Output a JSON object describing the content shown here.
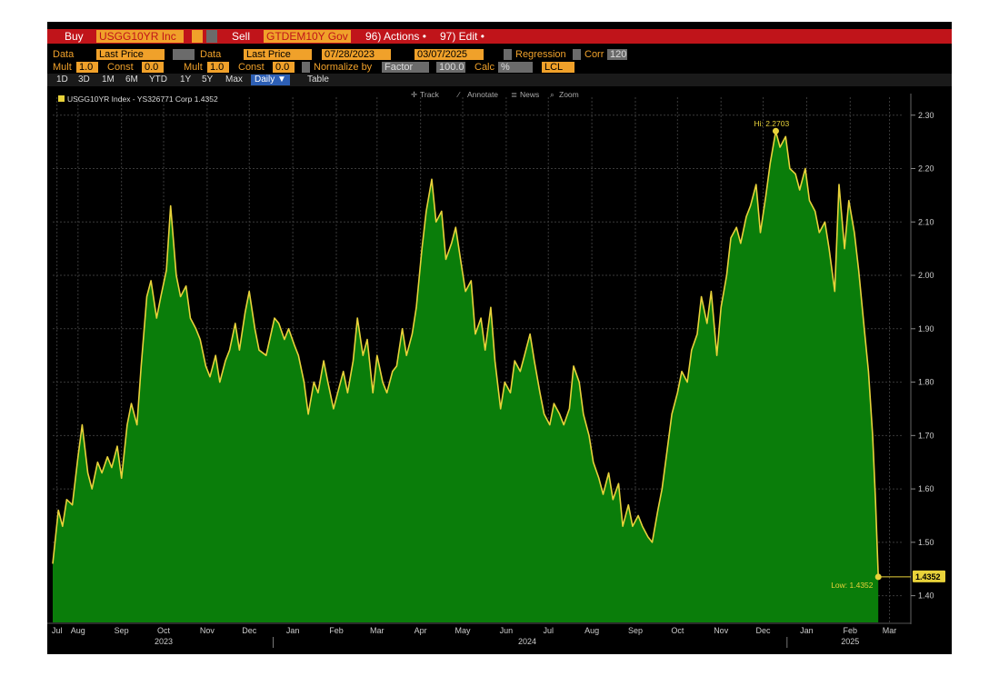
{
  "toolbar": {
    "buy_label": "Buy",
    "buy_security": "USGG10YR Inc",
    "sell_label": "Sell",
    "sell_security": "GTDEM10Y Gov",
    "actions_label": "96) Actions •",
    "edit_label": "97) Edit •"
  },
  "settings": {
    "data1_label": "Data",
    "data1_value": "Last Price",
    "data2_label": "Data",
    "data2_value": "Last Price",
    "start_date": "07/28/2023",
    "end_date": "03/07/2025",
    "regression_label": "Regression",
    "corr_label": "Corr",
    "corr_value": "120",
    "mult1_label": "Mult",
    "mult1_value": "1.0",
    "const1_label": "Const",
    "const1_value": "0.0",
    "mult2_label": "Mult",
    "mult2_value": "1.0",
    "const2_label": "Const",
    "const2_value": "0.0",
    "normalize_label": "Normalize by",
    "normalize_value": "Factor",
    "normalize_num": "100.0",
    "calc_label": "Calc",
    "calc_value": "%",
    "lcl_value": "LCL"
  },
  "timeframes": [
    "1D",
    "3D",
    "1M",
    "6M",
    "YTD",
    "1Y",
    "5Y",
    "Max"
  ],
  "frequency": "Daily ▼",
  "table_label": "Table",
  "chart_tools": [
    "Track",
    "Annotate",
    "News",
    "Zoom"
  ],
  "colors": {
    "area": "#0a7d0a",
    "line": "#e8d23a",
    "bg": "#000000",
    "accent": "#f0a12a",
    "bar": "#c0141a"
  },
  "chart_data": {
    "type": "area",
    "legend": "USGG10YR Index - YS326771 Corp 1.4352",
    "last_value_label": "1.4352",
    "hi_label": "Hi: 2.2703",
    "low_label": "Low: 1.4352",
    "hi_value": 2.2703,
    "low_value": 1.4352,
    "ylim": [
      1.35,
      2.32
    ],
    "yticks": [
      1.4,
      1.5,
      1.6,
      1.7,
      1.8,
      1.9,
      2.0,
      2.1,
      2.2,
      2.3
    ],
    "ytick_labels": [
      "1.40",
      "1.50",
      "1.60",
      "1.70",
      "1.80",
      "1.90",
      "2.00",
      "2.10",
      "2.20",
      "2.30"
    ],
    "x_start": "2023-07-28",
    "x_end": "2025-03-25",
    "month_labels": [
      {
        "label": "Jul",
        "date": "2023-07-31"
      },
      {
        "label": "Aug",
        "date": "2023-08-15"
      },
      {
        "label": "Sep",
        "date": "2023-09-15"
      },
      {
        "label": "Oct",
        "date": "2023-10-15"
      },
      {
        "label": "Nov",
        "date": "2023-11-15"
      },
      {
        "label": "Dec",
        "date": "2023-12-15"
      },
      {
        "label": "Jan",
        "date": "2024-01-15"
      },
      {
        "label": "Feb",
        "date": "2024-02-15"
      },
      {
        "label": "Mar",
        "date": "2024-03-15"
      },
      {
        "label": "Apr",
        "date": "2024-04-15"
      },
      {
        "label": "May",
        "date": "2024-05-15"
      },
      {
        "label": "Jun",
        "date": "2024-06-15"
      },
      {
        "label": "Jul",
        "date": "2024-07-15"
      },
      {
        "label": "Aug",
        "date": "2024-08-15"
      },
      {
        "label": "Sep",
        "date": "2024-09-15"
      },
      {
        "label": "Oct",
        "date": "2024-10-15"
      },
      {
        "label": "Nov",
        "date": "2024-11-15"
      },
      {
        "label": "Dec",
        "date": "2024-12-15"
      },
      {
        "label": "Jan",
        "date": "2025-01-15"
      },
      {
        "label": "Feb",
        "date": "2025-02-15"
      },
      {
        "label": "Mar",
        "date": "2025-03-15"
      }
    ],
    "year_labels": [
      {
        "label": "2023",
        "date": "2023-10-15"
      },
      {
        "label": "2024",
        "date": "2024-06-30"
      },
      {
        "label": "2025",
        "date": "2025-02-15"
      }
    ],
    "points": [
      [
        "2023-07-28",
        1.46
      ],
      [
        "2023-08-01",
        1.56
      ],
      [
        "2023-08-04",
        1.53
      ],
      [
        "2023-08-07",
        1.58
      ],
      [
        "2023-08-11",
        1.57
      ],
      [
        "2023-08-15",
        1.66
      ],
      [
        "2023-08-18",
        1.72
      ],
      [
        "2023-08-22",
        1.63
      ],
      [
        "2023-08-25",
        1.6
      ],
      [
        "2023-08-29",
        1.65
      ],
      [
        "2023-09-01",
        1.63
      ],
      [
        "2023-09-05",
        1.66
      ],
      [
        "2023-09-08",
        1.64
      ],
      [
        "2023-09-12",
        1.68
      ],
      [
        "2023-09-15",
        1.62
      ],
      [
        "2023-09-19",
        1.72
      ],
      [
        "2023-09-22",
        1.76
      ],
      [
        "2023-09-26",
        1.72
      ],
      [
        "2023-09-29",
        1.83
      ],
      [
        "2023-10-03",
        1.96
      ],
      [
        "2023-10-06",
        1.99
      ],
      [
        "2023-10-10",
        1.92
      ],
      [
        "2023-10-13",
        1.96
      ],
      [
        "2023-10-17",
        2.01
      ],
      [
        "2023-10-20",
        2.13
      ],
      [
        "2023-10-24",
        2.0
      ],
      [
        "2023-10-27",
        1.96
      ],
      [
        "2023-10-31",
        1.98
      ],
      [
        "2023-11-03",
        1.92
      ],
      [
        "2023-11-07",
        1.9
      ],
      [
        "2023-11-10",
        1.88
      ],
      [
        "2023-11-14",
        1.83
      ],
      [
        "2023-11-17",
        1.81
      ],
      [
        "2023-11-21",
        1.85
      ],
      [
        "2023-11-24",
        1.8
      ],
      [
        "2023-11-28",
        1.84
      ],
      [
        "2023-12-01",
        1.86
      ],
      [
        "2023-12-05",
        1.91
      ],
      [
        "2023-12-08",
        1.86
      ],
      [
        "2023-12-12",
        1.93
      ],
      [
        "2023-12-15",
        1.97
      ],
      [
        "2023-12-19",
        1.9
      ],
      [
        "2023-12-22",
        1.86
      ],
      [
        "2023-12-27",
        1.85
      ],
      [
        "2024-01-02",
        1.92
      ],
      [
        "2024-01-05",
        1.91
      ],
      [
        "2024-01-09",
        1.88
      ],
      [
        "2024-01-12",
        1.9
      ],
      [
        "2024-01-16",
        1.87
      ],
      [
        "2024-01-19",
        1.85
      ],
      [
        "2024-01-23",
        1.8
      ],
      [
        "2024-01-26",
        1.74
      ],
      [
        "2024-01-30",
        1.8
      ],
      [
        "2024-02-02",
        1.78
      ],
      [
        "2024-02-06",
        1.84
      ],
      [
        "2024-02-09",
        1.8
      ],
      [
        "2024-02-13",
        1.75
      ],
      [
        "2024-02-16",
        1.78
      ],
      [
        "2024-02-20",
        1.82
      ],
      [
        "2024-02-23",
        1.78
      ],
      [
        "2024-02-27",
        1.84
      ],
      [
        "2024-03-01",
        1.92
      ],
      [
        "2024-03-05",
        1.85
      ],
      [
        "2024-03-08",
        1.88
      ],
      [
        "2024-03-12",
        1.78
      ],
      [
        "2024-03-15",
        1.85
      ],
      [
        "2024-03-19",
        1.8
      ],
      [
        "2024-03-22",
        1.78
      ],
      [
        "2024-03-26",
        1.82
      ],
      [
        "2024-03-29",
        1.83
      ],
      [
        "2024-04-02",
        1.9
      ],
      [
        "2024-04-05",
        1.85
      ],
      [
        "2024-04-09",
        1.89
      ],
      [
        "2024-04-12",
        1.94
      ],
      [
        "2024-04-16",
        2.05
      ],
      [
        "2024-04-19",
        2.12
      ],
      [
        "2024-04-23",
        2.18
      ],
      [
        "2024-04-26",
        2.1
      ],
      [
        "2024-04-30",
        2.12
      ],
      [
        "2024-05-03",
        2.03
      ],
      [
        "2024-05-07",
        2.06
      ],
      [
        "2024-05-10",
        2.09
      ],
      [
        "2024-05-14",
        2.02
      ],
      [
        "2024-05-17",
        1.97
      ],
      [
        "2024-05-21",
        1.99
      ],
      [
        "2024-05-24",
        1.89
      ],
      [
        "2024-05-28",
        1.92
      ],
      [
        "2024-05-31",
        1.86
      ],
      [
        "2024-06-04",
        1.94
      ],
      [
        "2024-06-07",
        1.84
      ],
      [
        "2024-06-11",
        1.75
      ],
      [
        "2024-06-14",
        1.8
      ],
      [
        "2024-06-18",
        1.78
      ],
      [
        "2024-06-21",
        1.84
      ],
      [
        "2024-06-25",
        1.82
      ],
      [
        "2024-06-28",
        1.85
      ],
      [
        "2024-07-02",
        1.89
      ],
      [
        "2024-07-05",
        1.84
      ],
      [
        "2024-07-09",
        1.78
      ],
      [
        "2024-07-12",
        1.74
      ],
      [
        "2024-07-16",
        1.72
      ],
      [
        "2024-07-19",
        1.76
      ],
      [
        "2024-07-23",
        1.74
      ],
      [
        "2024-07-26",
        1.72
      ],
      [
        "2024-07-30",
        1.75
      ],
      [
        "2024-08-02",
        1.83
      ],
      [
        "2024-08-06",
        1.8
      ],
      [
        "2024-08-09",
        1.74
      ],
      [
        "2024-08-13",
        1.7
      ],
      [
        "2024-08-16",
        1.65
      ],
      [
        "2024-08-20",
        1.62
      ],
      [
        "2024-08-23",
        1.59
      ],
      [
        "2024-08-27",
        1.63
      ],
      [
        "2024-08-30",
        1.58
      ],
      [
        "2024-09-03",
        1.61
      ],
      [
        "2024-09-06",
        1.53
      ],
      [
        "2024-09-10",
        1.57
      ],
      [
        "2024-09-13",
        1.53
      ],
      [
        "2024-09-17",
        1.55
      ],
      [
        "2024-09-20",
        1.53
      ],
      [
        "2024-09-24",
        1.51
      ],
      [
        "2024-09-27",
        1.5
      ],
      [
        "2024-10-01",
        1.56
      ],
      [
        "2024-10-04",
        1.6
      ],
      [
        "2024-10-08",
        1.68
      ],
      [
        "2024-10-11",
        1.74
      ],
      [
        "2024-10-15",
        1.78
      ],
      [
        "2024-10-18",
        1.82
      ],
      [
        "2024-10-22",
        1.8
      ],
      [
        "2024-10-25",
        1.86
      ],
      [
        "2024-10-29",
        1.89
      ],
      [
        "2024-11-01",
        1.96
      ],
      [
        "2024-11-05",
        1.91
      ],
      [
        "2024-11-08",
        1.97
      ],
      [
        "2024-11-12",
        1.85
      ],
      [
        "2024-11-15",
        1.94
      ],
      [
        "2024-11-19",
        2.0
      ],
      [
        "2024-11-22",
        2.07
      ],
      [
        "2024-11-26",
        2.09
      ],
      [
        "2024-11-29",
        2.06
      ],
      [
        "2024-12-03",
        2.11
      ],
      [
        "2024-12-06",
        2.13
      ],
      [
        "2024-12-10",
        2.17
      ],
      [
        "2024-12-13",
        2.08
      ],
      [
        "2024-12-17",
        2.15
      ],
      [
        "2024-12-20",
        2.21
      ],
      [
        "2024-12-24",
        2.27
      ],
      [
        "2024-12-27",
        2.24
      ],
      [
        "2024-12-31",
        2.26
      ],
      [
        "2025-01-03",
        2.2
      ],
      [
        "2025-01-07",
        2.19
      ],
      [
        "2025-01-10",
        2.16
      ],
      [
        "2025-01-14",
        2.2
      ],
      [
        "2025-01-17",
        2.14
      ],
      [
        "2025-01-21",
        2.12
      ],
      [
        "2025-01-24",
        2.08
      ],
      [
        "2025-01-28",
        2.1
      ],
      [
        "2025-01-31",
        2.05
      ],
      [
        "2025-02-04",
        1.97
      ],
      [
        "2025-02-07",
        2.17
      ],
      [
        "2025-02-11",
        2.05
      ],
      [
        "2025-02-14",
        2.14
      ],
      [
        "2025-02-18",
        2.08
      ],
      [
        "2025-02-21",
        2.01
      ],
      [
        "2025-02-25",
        1.9
      ],
      [
        "2025-02-28",
        1.82
      ],
      [
        "2025-03-03",
        1.7
      ],
      [
        "2025-03-05",
        1.58
      ],
      [
        "2025-03-07",
        1.4352
      ]
    ]
  }
}
